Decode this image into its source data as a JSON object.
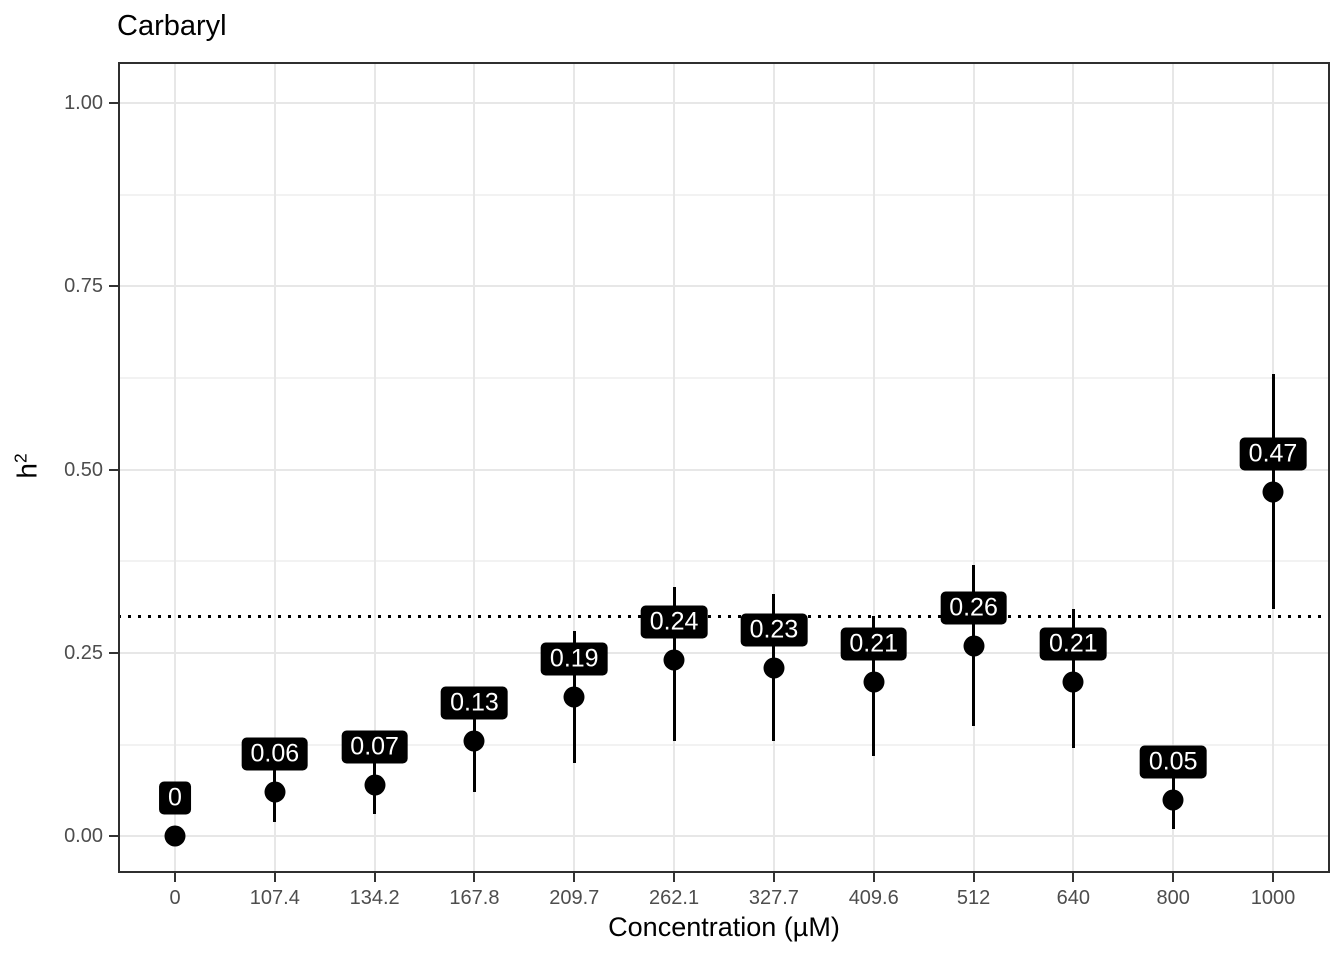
{
  "figure": {
    "title": "Carbaryl",
    "x_axis": {
      "label": "Concentration (µM)",
      "tick_labels": [
        "0",
        "107.4",
        "134.2",
        "167.8",
        "209.7",
        "262.1",
        "327.7",
        "409.6",
        "512",
        "640",
        "800",
        "1000"
      ]
    },
    "y_axis": {
      "label_base": "h",
      "label_superscript": "2",
      "tick_labels": [
        "0.00",
        "0.25",
        "0.50",
        "0.75",
        "1.00"
      ]
    },
    "colors": {
      "point": "#000000",
      "error_bar": "#000000",
      "label_background": "#000000",
      "label_text": "#ffffff",
      "axis_text": "#4d4d4d",
      "title_text": "#000000",
      "tick_mark": "#333333",
      "grid_major": "#e7e7e7",
      "grid_minor": "#f2f2f2",
      "panel_border": "#2f2f2f",
      "ref_line": "#000000",
      "panel_background": "#ffffff"
    },
    "chart_data": {
      "type": "scatter",
      "title": "Carbaryl",
      "xlabel": "Concentration (µM)",
      "ylabel": "h²",
      "x_scale": "categorical",
      "categories": [
        "0",
        "107.4",
        "134.2",
        "167.8",
        "209.7",
        "262.1",
        "327.7",
        "409.6",
        "512",
        "640",
        "800",
        "1000"
      ],
      "series": [
        {
          "name": "h2",
          "values": [
            0,
            0.06,
            0.07,
            0.13,
            0.19,
            0.24,
            0.23,
            0.21,
            0.26,
            0.21,
            0.05,
            0.47
          ],
          "ci_low": [
            0,
            0.02,
            0.03,
            0.06,
            0.1,
            0.13,
            0.13,
            0.11,
            0.15,
            0.12,
            0.01,
            0.31
          ],
          "ci_high": [
            0,
            0.1,
            0.12,
            0.19,
            0.28,
            0.34,
            0.33,
            0.3,
            0.37,
            0.31,
            0.09,
            0.63
          ],
          "point_labels": [
            "0",
            "0.06",
            "0.07",
            "0.13",
            "0.19",
            "0.24",
            "0.23",
            "0.21",
            "0.26",
            "0.21",
            "0.05",
            "0.47"
          ]
        }
      ],
      "y_tick_values": [
        0,
        0.25,
        0.5,
        0.75,
        1.0
      ],
      "y_minor_values": [
        0.125,
        0.375,
        0.625,
        0.875
      ],
      "ylim": [
        -0.05,
        1.056
      ],
      "ref_line": {
        "y": 0.3,
        "style": "dotted"
      },
      "grid": true,
      "legend": "none",
      "error_bars": true
    }
  }
}
